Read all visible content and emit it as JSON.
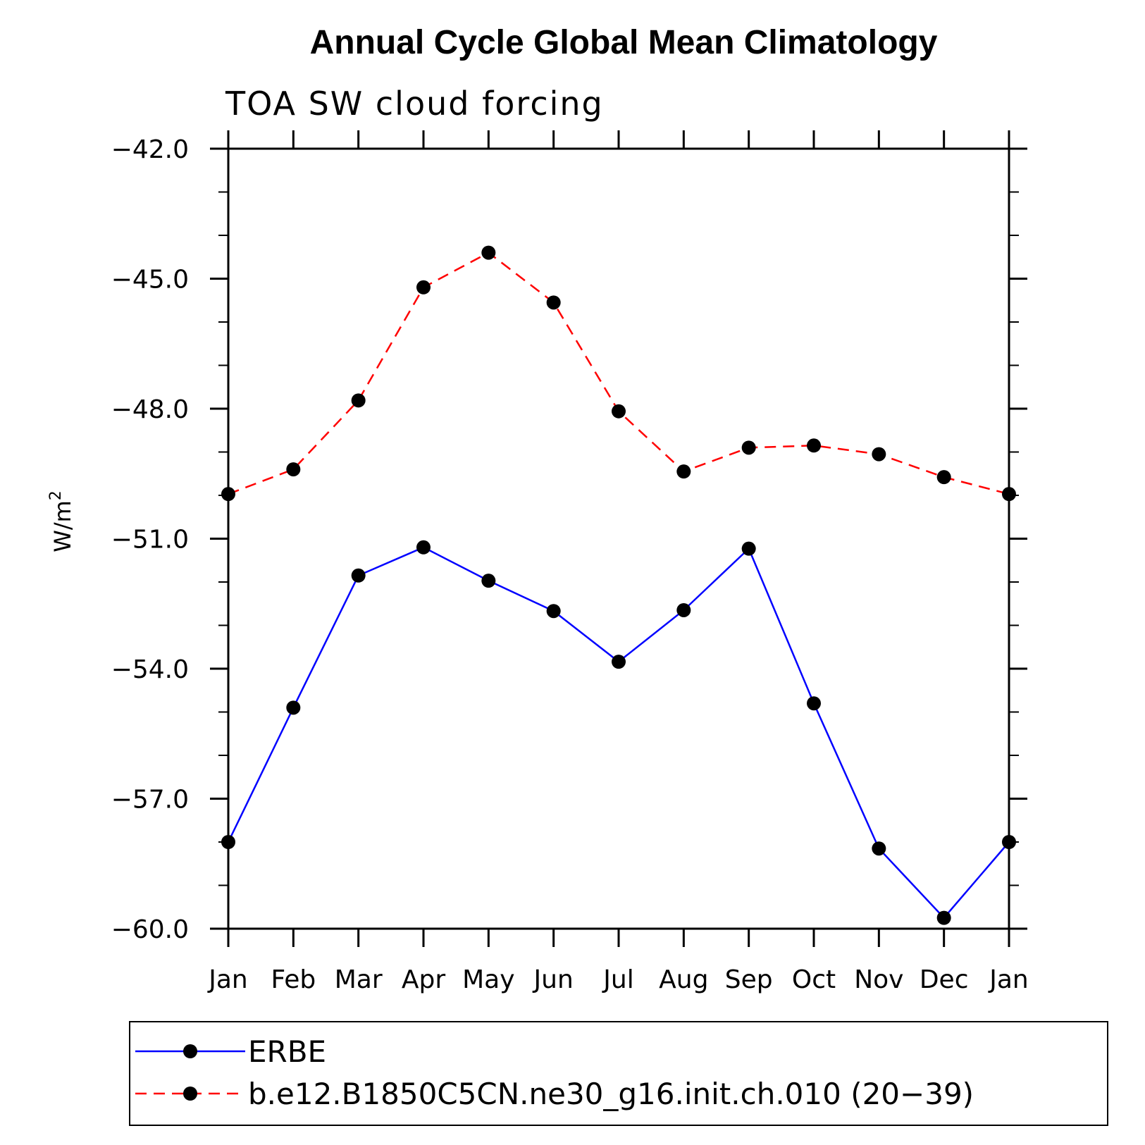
{
  "chart_data": {
    "type": "line",
    "title": "Annual Cycle Global Mean Climatology",
    "subtitle": "TOA SW cloud forcing",
    "ylabel": "W/m",
    "ylabel_superscript": "2",
    "xlabel": "",
    "categories": [
      "Jan",
      "Feb",
      "Mar",
      "Apr",
      "May",
      "Jun",
      "Jul",
      "Aug",
      "Sep",
      "Oct",
      "Nov",
      "Dec",
      "Jan"
    ],
    "ylim": [
      -60.0,
      -42.0
    ],
    "yticks": [
      -42.0,
      -45.0,
      -48.0,
      -51.0,
      -54.0,
      -57.0,
      -60.0
    ],
    "ytick_labels": [
      "−42.0",
      "−45.0",
      "−48.0",
      "−51.0",
      "−54.0",
      "−57.0",
      "−60.0"
    ],
    "series": [
      {
        "name": "ERBE",
        "color": "#0000ff",
        "style": "solid",
        "values": [
          -58.0,
          -54.9,
          -51.85,
          -51.2,
          -51.97,
          -52.67,
          -53.84,
          -52.65,
          -51.23,
          -54.8,
          -58.15,
          -59.75,
          -58.0
        ]
      },
      {
        "name": "b.e12.B1850C5CN.ne30_g16.init.ch.010 (20−39)",
        "color": "#ff0000",
        "style": "dashed",
        "values": [
          -49.97,
          -49.4,
          -47.81,
          -45.2,
          -44.4,
          -45.55,
          -48.06,
          -49.45,
          -48.9,
          -48.85,
          -49.05,
          -49.58,
          -49.97
        ]
      }
    ],
    "grid": false,
    "legend_position": "bottom"
  }
}
